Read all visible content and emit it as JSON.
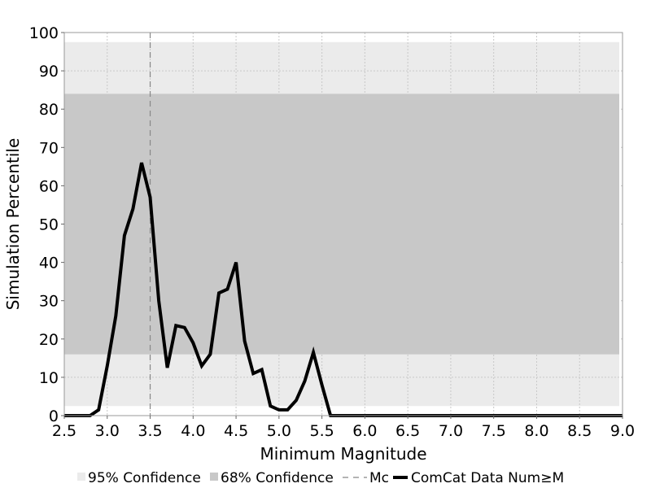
{
  "chart_data": {
    "type": "line",
    "title": "",
    "xlabel": "Minimum Magnitude",
    "ylabel": "Simulation Percentile",
    "xlim": [
      2.5,
      9.0
    ],
    "ylim": [
      0,
      100
    ],
    "grid": true,
    "xticks": [
      "2.5",
      "3.0",
      "3.5",
      "4.0",
      "4.5",
      "5.0",
      "5.5",
      "6.0",
      "6.5",
      "7.0",
      "7.5",
      "8.0",
      "8.5",
      "9.0"
    ],
    "yticks": [
      "0",
      "10",
      "20",
      "30",
      "40",
      "50",
      "60",
      "70",
      "80",
      "90",
      "100"
    ],
    "bands": [
      {
        "name": "95% Confidence",
        "y0": 2.5,
        "y1": 97.5,
        "color": "#ebebeb"
      },
      {
        "name": "68% Confidence",
        "y0": 16,
        "y1": 84,
        "color": "#c8c8c8"
      }
    ],
    "mc": {
      "name": "Mc",
      "x": 3.5,
      "color": "#888888"
    },
    "series": [
      {
        "name": "ComCat Data Num≥M",
        "color": "#000000",
        "x": [
          2.5,
          2.6,
          2.7,
          2.8,
          2.9,
          3.0,
          3.1,
          3.2,
          3.3,
          3.4,
          3.5,
          3.6,
          3.7,
          3.8,
          3.9,
          4.0,
          4.1,
          4.2,
          4.3,
          4.4,
          4.5,
          4.6,
          4.7,
          4.8,
          4.9,
          5.0,
          5.1,
          5.2,
          5.3,
          5.4,
          5.5,
          5.6,
          5.7,
          5.8,
          5.9,
          6.0,
          6.5,
          7.0,
          7.5,
          8.0,
          8.5,
          9.0
        ],
        "values": [
          0,
          0,
          0,
          0,
          1.5,
          13,
          26,
          47,
          54,
          66,
          57,
          30,
          12.5,
          23.5,
          23,
          19,
          13,
          16,
          32,
          33,
          40,
          19.5,
          11,
          12,
          2.5,
          1.5,
          1.5,
          4,
          9,
          16.5,
          8,
          0,
          0,
          0,
          0,
          0,
          0,
          0,
          0,
          0,
          0,
          0
        ]
      }
    ],
    "legend": {
      "placement": "bottom",
      "items": [
        {
          "label": "95% Confidence",
          "kind": "patch",
          "color": "#ebebeb"
        },
        {
          "label": "68% Confidence",
          "kind": "patch",
          "color": "#c8c8c8"
        },
        {
          "label": "Mc",
          "kind": "dashed",
          "color": "#888888"
        },
        {
          "label": "ComCat Data Num≥M",
          "kind": "line",
          "color": "#000000"
        }
      ]
    }
  }
}
